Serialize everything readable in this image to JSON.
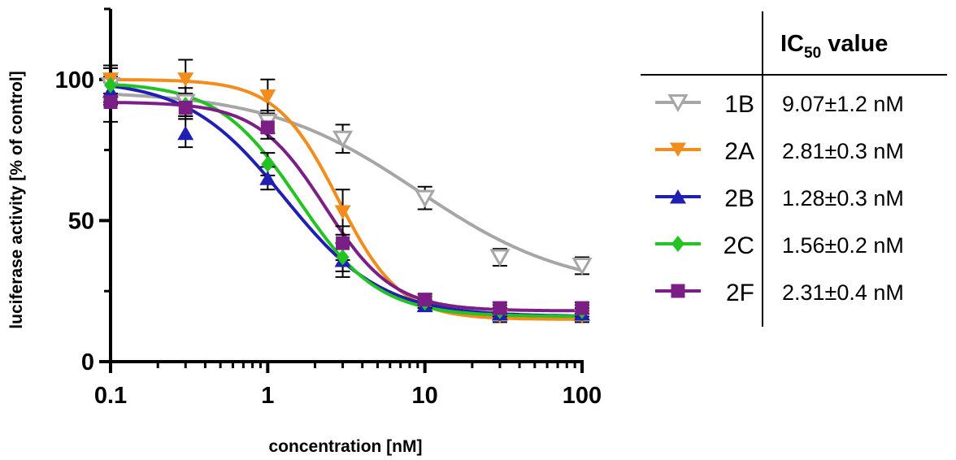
{
  "chart_data": {
    "type": "scatter",
    "xlabel": "concentration [nM]",
    "ylabel": "luciferase activity [% of control]",
    "x_scale": "log",
    "xlim": [
      0.1,
      100
    ],
    "ylim": [
      0,
      125
    ],
    "x_ticks": [
      "0.1",
      "1",
      "10",
      "100"
    ],
    "y_ticks": [
      "0",
      "50",
      "100"
    ],
    "grid": false,
    "legend_position": "right",
    "legend_header": "IC",
    "legend_header_subscript": "50",
    "legend_header_suffix": "value",
    "x": [
      0.1,
      0.3,
      1,
      3,
      10,
      30,
      100
    ],
    "series": [
      {
        "name": "1B",
        "ic50": "9.07±1.2 nM",
        "color": "#a6a6a6",
        "marker": "triangle-down-open",
        "values": [
          98,
          92,
          85,
          79,
          58,
          37,
          34
        ],
        "errors": [
          6,
          5,
          4,
          5,
          4,
          3,
          3
        ],
        "fit": {
          "top": 96,
          "bottom": 25,
          "ec50": 9.07,
          "hill": 0.9
        }
      },
      {
        "name": "2A",
        "ic50": "2.81±0.3 nM",
        "color": "#f28c1c",
        "marker": "triangle-down",
        "values": [
          100,
          100,
          94,
          53,
          21,
          16,
          16
        ],
        "errors": [
          5,
          7,
          6,
          8,
          2,
          2,
          2
        ],
        "fit": {
          "top": 100,
          "bottom": 15,
          "ec50": 2.81,
          "hill": 2.2
        }
      },
      {
        "name": "2B",
        "ic50": "1.28±0.3 nM",
        "color": "#1f1fb4",
        "marker": "triangle-up",
        "values": [
          96,
          81,
          65,
          36,
          20,
          17,
          17
        ],
        "errors": [
          5,
          5,
          4,
          6,
          2,
          2,
          2
        ],
        "fit": {
          "top": 100,
          "bottom": 16,
          "ec50": 1.28,
          "hill": 1.4
        }
      },
      {
        "name": "2C",
        "ic50": "1.56±0.2 nM",
        "color": "#22c322",
        "marker": "diamond",
        "values": [
          98,
          91,
          70,
          37,
          21,
          18,
          18
        ],
        "errors": [
          4,
          4,
          4,
          5,
          2,
          2,
          2
        ],
        "fit": {
          "top": 99,
          "bottom": 16,
          "ec50": 1.56,
          "hill": 1.7
        }
      },
      {
        "name": "2F",
        "ic50": "2.31±0.4 nM",
        "color": "#7b1f87",
        "marker": "square",
        "values": [
          92,
          90,
          83,
          42,
          22,
          19,
          19
        ],
        "errors": [
          7,
          4,
          4,
          6,
          2,
          2,
          2
        ],
        "fit": {
          "top": 92,
          "bottom": 18,
          "ec50": 2.31,
          "hill": 2.0
        }
      }
    ]
  }
}
